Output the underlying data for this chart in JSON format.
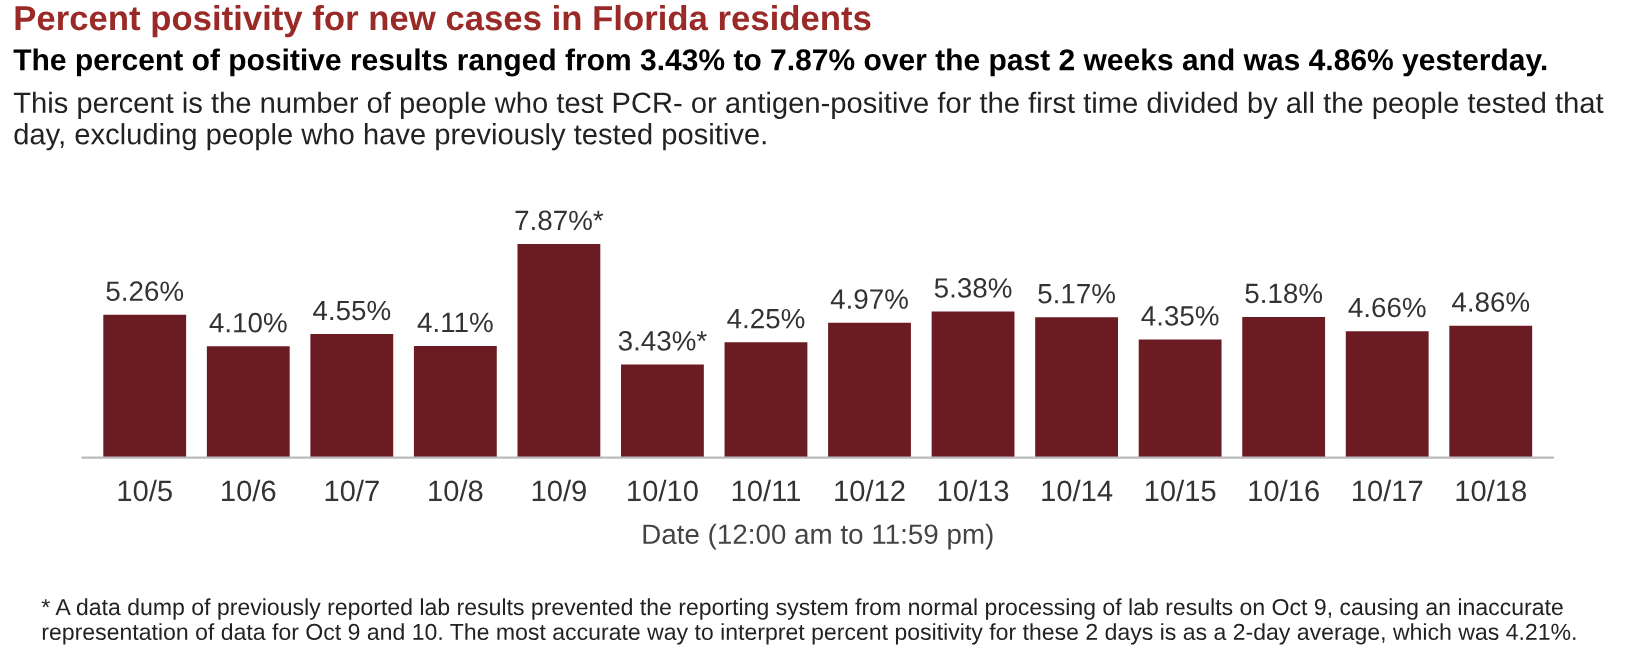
{
  "chart_data": {
    "type": "bar",
    "title": "Percent positivity for new cases in Florida residents",
    "subtitle": "The percent of positive results ranged from 3.43% to 7.87% over the past 2 weeks and was 4.86% yesterday.",
    "annotations": [
      "This percent is the number of people who test PCR- or antigen-positive for the first time divided by all the people tested that day, excluding people who have previously tested positive.",
      "* A data dump of previously reported lab results prevented the reporting system from normal processing of lab results on Oct 9, causing an inaccurate representation of data for Oct 9 and 10. The most accurate way to interpret percent positivity for these 2 days is as a 2-day average, which was 4.21%."
    ],
    "xlabel": "Date (12:00 am to 11:59 pm)",
    "categories": [
      "10/5",
      "10/6",
      "10/7",
      "10/8",
      "10/9",
      "10/10",
      "10/11",
      "10/12",
      "10/13",
      "10/14",
      "10/15",
      "10/16",
      "10/17",
      "10/18"
    ],
    "values": [
      5.26,
      4.1,
      4.55,
      4.11,
      7.87,
      3.43,
      4.25,
      4.97,
      5.38,
      5.17,
      4.35,
      5.18,
      4.66,
      4.86
    ],
    "value_labels": [
      "5.26%",
      "4.10%",
      "4.55%",
      "4.11%",
      "7.87%*",
      "3.43%*",
      "4.25%",
      "4.97%",
      "5.38%",
      "5.17%",
      "4.35%",
      "5.18%",
      "4.66%",
      "4.86%"
    ],
    "color": "#6b1c22",
    "tick_labels": "x",
    "grid": false,
    "legend": false
  }
}
